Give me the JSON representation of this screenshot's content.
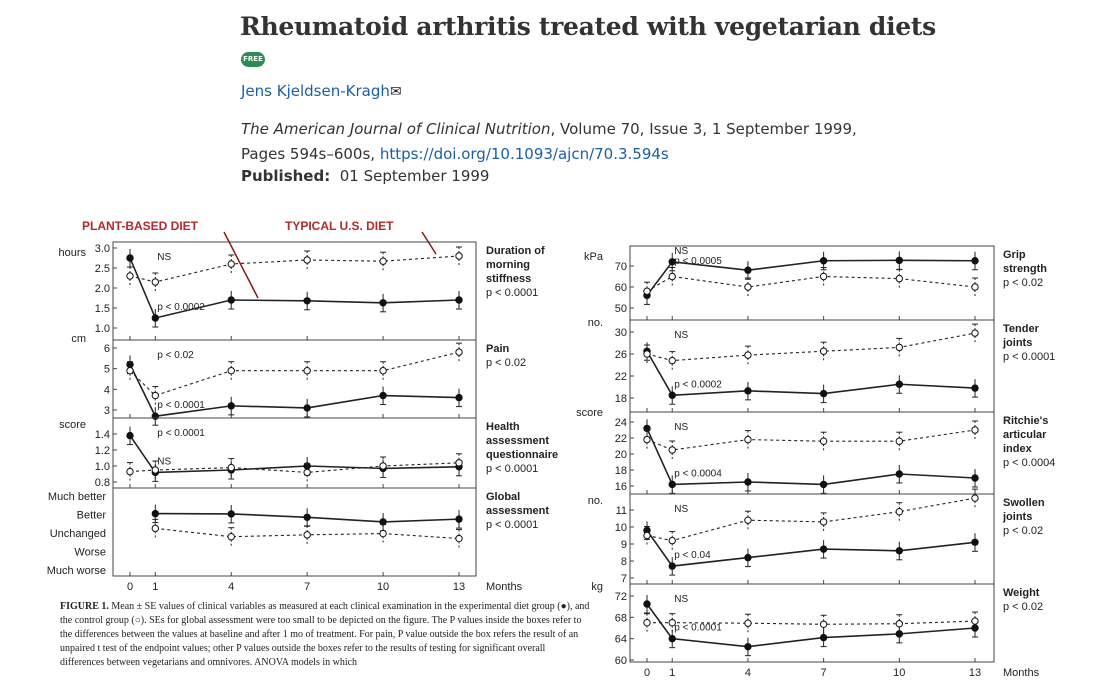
{
  "article": {
    "title": "Rheumatoid arthritis treated with vegetarian diets",
    "badge": "FREE",
    "author": "Jens Kjeldsen-Kragh",
    "mail_icon": "envelope-icon",
    "journal": "The American Journal of Clinical Nutrition",
    "citation_rest": ", Volume 70, Issue 3, 1 September 1999, Pages 594s–600s, ",
    "doi": "https://doi.org/10.1093/ajcn/70.3.594s",
    "published_label": "Published:",
    "published_date": "01 September 1999"
  },
  "figure": {
    "annotation_plant": "PLANT-BASED DIET",
    "annotation_typical": "TYPICAL U.S. DIET",
    "caption_label": "FIGURE 1.",
    "caption_text": "Mean ± SE values of clinical variables as measured at each clinical examination in the experimental diet group (●), and the control group (○). SEs for global assessment were too small to be depicted on the figure. The P values inside the boxes refer to the differences between the values at baseline and after 1 mo of treatment. For pain, P value outside the box refers the result of an unpaired t test of the endpoint values; other P values outside the boxes refer to the results of testing for significant overall differences between vegetarians and omnivores. ANOVA models in which",
    "months_label": "Months"
  },
  "chart_data": [
    {
      "type": "line",
      "panel": "morning-stiffness",
      "ylabel": "hours",
      "yticks": [
        "3.0",
        "2.5",
        "2.0",
        "1.5",
        "1.0"
      ],
      "ylim": [
        1.0,
        3.0
      ],
      "x": [
        0,
        1,
        4,
        7,
        10,
        13
      ],
      "title": "Duration of morning stiffness",
      "stat": "p < 0.0001",
      "inner": [
        "NS",
        "p < 0.0002"
      ],
      "series": [
        {
          "values": [
            2.75,
            1.25,
            1.7,
            1.68,
            1.63,
            1.7
          ]
        },
        {
          "values": [
            2.3,
            2.15,
            2.6,
            2.7,
            2.67,
            2.8
          ]
        }
      ]
    },
    {
      "type": "line",
      "panel": "pain",
      "ylabel": "cm",
      "yticks": [
        "6",
        "5",
        "4",
        "3"
      ],
      "ylim": [
        2.5,
        6
      ],
      "x": [
        0,
        1,
        4,
        7,
        10,
        13
      ],
      "title": "Pain",
      "stat": "p < 0.02",
      "inner": [
        "p < 0.02",
        "p < 0.0001"
      ],
      "series": [
        {
          "values": [
            5.2,
            2.7,
            3.2,
            3.1,
            3.7,
            3.6
          ]
        },
        {
          "values": [
            4.9,
            3.7,
            4.9,
            4.9,
            4.9,
            5.8
          ]
        }
      ]
    },
    {
      "type": "line",
      "panel": "health-assessment",
      "ylabel": "score",
      "yticks": [
        "1.4",
        "1.2",
        "1.0",
        "0.8"
      ],
      "ylim": [
        0.8,
        1.5
      ],
      "x": [
        0,
        1,
        4,
        7,
        10,
        13
      ],
      "title": "Health assessment questionnaire",
      "stat": "p < 0.0001",
      "inner": [
        "p < 0.0001",
        "NS"
      ],
      "series": [
        {
          "values": [
            1.38,
            0.92,
            0.95,
            1.0,
            0.97,
            0.99
          ]
        },
        {
          "values": [
            0.93,
            0.95,
            0.98,
            0.92,
            1.0,
            1.04
          ]
        }
      ]
    },
    {
      "type": "line",
      "panel": "global-assessment",
      "ycategories": [
        "Much better",
        "Better",
        "Unchanged",
        "Worse",
        "Much worse"
      ],
      "x": [
        0,
        1,
        4,
        7,
        10,
        13
      ],
      "title": "Global assessment",
      "stat": "p < 0.0001",
      "series": [
        {
          "values": [
            null,
            4.05,
            4.03,
            3.85,
            3.6,
            3.75
          ]
        },
        {
          "values": [
            null,
            3.25,
            2.8,
            2.9,
            2.97,
            2.7
          ]
        }
      ]
    },
    {
      "type": "line",
      "panel": "grip-strength",
      "ylabel": "kPa",
      "yticks": [
        "70",
        "60",
        "50"
      ],
      "ylim": [
        48,
        76
      ],
      "x": [
        0,
        1,
        4,
        7,
        10,
        13
      ],
      "title": "Grip strength",
      "stat": "p < 0.02",
      "inner": [
        "p < 0.0005",
        "NS"
      ],
      "series": [
        {
          "values": [
            56,
            72,
            68,
            72.5,
            72.7,
            72.5
          ]
        },
        {
          "values": [
            58,
            65,
            60,
            65,
            64,
            60
          ]
        }
      ]
    },
    {
      "type": "line",
      "panel": "tender-joints",
      "ylabel": "no.",
      "yticks": [
        "30",
        "26",
        "22",
        "18"
      ],
      "ylim": [
        16.5,
        31
      ],
      "x": [
        0,
        1,
        4,
        7,
        10,
        13
      ],
      "title": "Tender joints",
      "stat": "p < 0.0001",
      "inner": [
        "NS",
        "p < 0.0002"
      ],
      "series": [
        {
          "values": [
            26.5,
            18.5,
            19.3,
            18.8,
            20.5,
            19.8
          ]
        },
        {
          "values": [
            26,
            24.8,
            25.8,
            26.5,
            27.2,
            29.8
          ]
        }
      ]
    },
    {
      "type": "line",
      "panel": "ritchie-index",
      "ylabel": "score",
      "yticks": [
        "24",
        "22",
        "20",
        "18",
        "16"
      ],
      "ylim": [
        15.5,
        24.5
      ],
      "x": [
        0,
        1,
        4,
        7,
        10,
        13
      ],
      "title": "Ritchie's articular index",
      "stat": "p < 0.0004",
      "inner": [
        "NS",
        "p < 0.0004"
      ],
      "series": [
        {
          "values": [
            23.2,
            16.2,
            16.5,
            16.2,
            17.5,
            17
          ]
        },
        {
          "values": [
            21.8,
            20.5,
            21.8,
            21.6,
            21.6,
            23
          ]
        }
      ]
    },
    {
      "type": "line",
      "panel": "swollen-joints",
      "ylabel": "no.",
      "yticks": [
        "11",
        "10",
        "9",
        "8",
        "7"
      ],
      "ylim": [
        6.7,
        12
      ],
      "x": [
        0,
        1,
        4,
        7,
        10,
        13
      ],
      "title": "Swollen joints",
      "stat": "p < 0.02",
      "inner": [
        "NS",
        "p < 0.04"
      ],
      "series": [
        {
          "values": [
            9.8,
            7.7,
            8.2,
            8.7,
            8.6,
            9.1
          ]
        },
        {
          "values": [
            9.5,
            9.2,
            10.4,
            10.3,
            10.9,
            11.7
          ]
        }
      ]
    },
    {
      "type": "line",
      "panel": "weight",
      "ylabel": "kg",
      "yticks": [
        "72",
        "68",
        "64",
        "60"
      ],
      "ylim": [
        60,
        73
      ],
      "x": [
        0,
        1,
        4,
        7,
        10,
        13
      ],
      "title": "Weight",
      "stat": "p < 0.02",
      "inner": [
        "NS",
        "p < 0.0001"
      ],
      "series": [
        {
          "values": [
            70.5,
            64,
            62.5,
            64.2,
            64.9,
            66
          ]
        },
        {
          "values": [
            67,
            67,
            66.9,
            66.7,
            66.8,
            67.3
          ]
        }
      ]
    }
  ]
}
